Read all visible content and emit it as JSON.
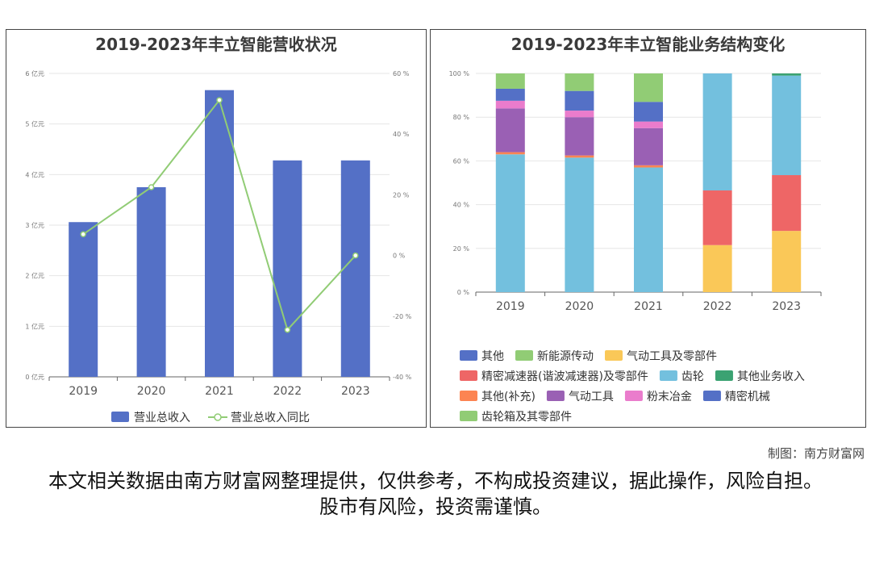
{
  "credit": "制图：南方财富网",
  "disclaimer": "本文相关数据由南方财富网整理提供，仅供参考，不构成投资建议，据此操作，风险自担。股市有风险，投资需谨慎。",
  "chart_data": [
    {
      "type": "bar",
      "title": "2019-2023年丰立智能营收状况",
      "categories": [
        "2019",
        "2020",
        "2021",
        "2022",
        "2023"
      ],
      "y_ticks": [
        "0 亿元",
        "1 亿元",
        "2 亿元",
        "3 亿元",
        "4 亿元",
        "5 亿元",
        "6 亿元"
      ],
      "y2_ticks": [
        "-40 %",
        "-20 %",
        "0 %",
        "20 %",
        "40 %",
        "60 %"
      ],
      "ylim": [
        0,
        6
      ],
      "y2lim": [
        -40,
        60
      ],
      "grid": true,
      "legend_position": "bottom",
      "series": [
        {
          "name": "营业总收入",
          "type": "bar",
          "axis": "left",
          "color": "#5470c6",
          "values": [
            3.06,
            3.75,
            5.67,
            4.28,
            4.28
          ]
        },
        {
          "name": "营业总收入同比",
          "type": "line",
          "axis": "right",
          "color": "#91cc75",
          "values": [
            7.0,
            22.5,
            51.2,
            -24.5,
            0.0
          ]
        }
      ]
    },
    {
      "type": "bar",
      "stacked": true,
      "title": "2019-2023年丰立智能业务结构变化",
      "categories": [
        "2019",
        "2020",
        "2021",
        "2022",
        "2023"
      ],
      "y_ticks": [
        "0 %",
        "20 %",
        "40 %",
        "60 %",
        "80 %",
        "100 %"
      ],
      "ylim": [
        0,
        100
      ],
      "grid": true,
      "legend_position": "bottom",
      "series": [
        {
          "name": "其他",
          "color": "#5470c6",
          "values": [
            0,
            0,
            0,
            0,
            0
          ]
        },
        {
          "name": "新能源传动",
          "color": "#91cc75",
          "values": [
            0,
            0,
            0,
            0,
            0
          ]
        },
        {
          "name": "气动工具及零部件",
          "color": "#fac858",
          "values": [
            0,
            0,
            0,
            21.5,
            28.0
          ]
        },
        {
          "name": "精密减速器(谐波减速器)及零部件",
          "color": "#ee6666",
          "values": [
            0,
            0,
            0,
            25.0,
            25.5
          ]
        },
        {
          "name": "齿轮",
          "color": "#73c0de",
          "values": [
            63.0,
            61.5,
            57.0,
            53.5,
            45.5
          ]
        },
        {
          "name": "其他业务收入",
          "color": "#3ba272",
          "values": [
            0,
            0,
            0,
            0,
            1.0
          ]
        },
        {
          "name": "其他(补充)",
          "color": "#fc8452",
          "values": [
            1.0,
            1.0,
            1.0,
            0,
            0
          ]
        },
        {
          "name": "气动工具",
          "color": "#9a60b4",
          "values": [
            20.0,
            17.5,
            17.0,
            0,
            0
          ]
        },
        {
          "name": "粉末冶金",
          "color": "#ea7ccc",
          "values": [
            3.5,
            3.0,
            3.0,
            0,
            0
          ]
        },
        {
          "name": "精密机械",
          "color": "#5470c6",
          "values": [
            5.5,
            9.0,
            9.0,
            0,
            0
          ]
        },
        {
          "name": "齿轮箱及其零部件",
          "color": "#91cc75",
          "values": [
            7.0,
            8.0,
            13.0,
            0,
            0
          ]
        }
      ]
    }
  ]
}
